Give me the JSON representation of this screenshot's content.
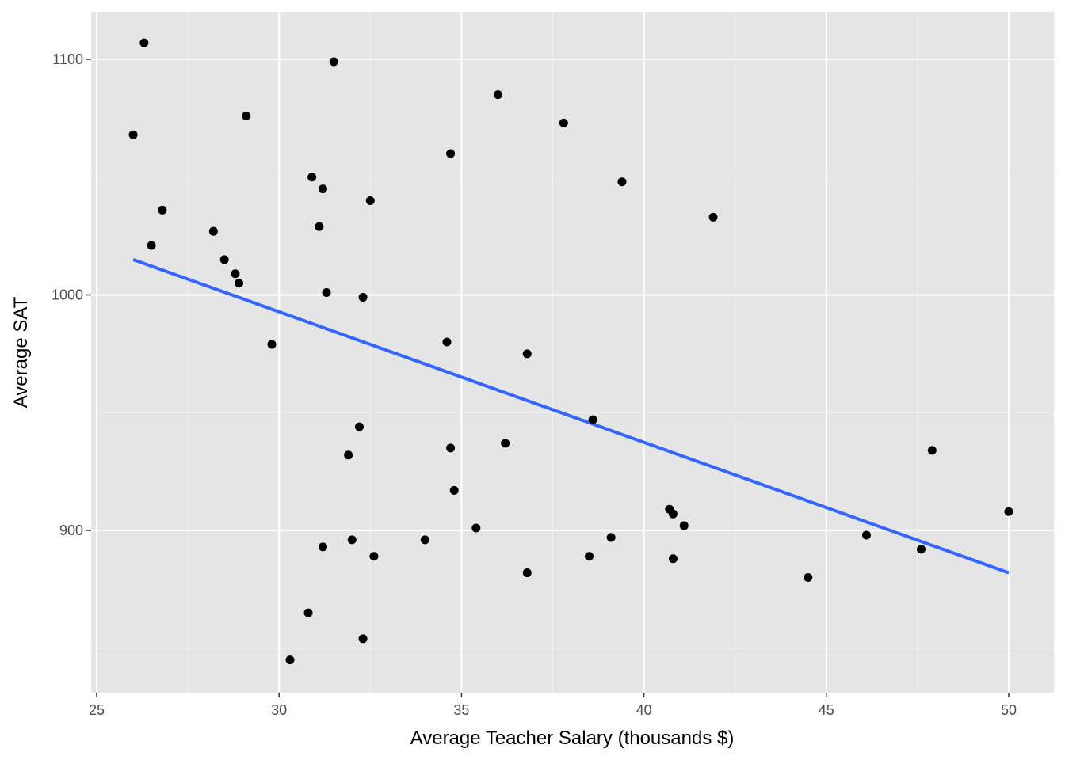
{
  "chart_data": {
    "type": "scatter",
    "title": "",
    "xlabel": "Average Teacher Salary (thousands $)",
    "ylabel": "Average SAT",
    "xlim": [
      24.9,
      51.2
    ],
    "ylim": [
      833,
      1120
    ],
    "x_ticks": [
      25,
      30,
      35,
      40,
      45,
      50
    ],
    "x_tick_labels": [
      "25",
      "30",
      "35",
      "40",
      "45",
      "50"
    ],
    "y_ticks": [
      900,
      1000,
      1100
    ],
    "y_tick_labels": [
      "900",
      "1000",
      "1100"
    ],
    "x_minor_gridlines": [
      27.5,
      32.5,
      37.5,
      42.5,
      47.5
    ],
    "y_minor_gridlines": [
      850,
      950,
      1050
    ],
    "grid": true,
    "background": "#e5e5e5",
    "point_color": "#000000",
    "series": [
      {
        "points": [
          {
            "x": 26.0,
            "y": 1068
          },
          {
            "x": 26.3,
            "y": 1107
          },
          {
            "x": 26.5,
            "y": 1021
          },
          {
            "x": 26.8,
            "y": 1036
          },
          {
            "x": 28.2,
            "y": 1027
          },
          {
            "x": 28.5,
            "y": 1015
          },
          {
            "x": 28.8,
            "y": 1009
          },
          {
            "x": 28.9,
            "y": 1005
          },
          {
            "x": 29.1,
            "y": 1076
          },
          {
            "x": 29.8,
            "y": 979
          },
          {
            "x": 30.3,
            "y": 845
          },
          {
            "x": 30.8,
            "y": 865
          },
          {
            "x": 30.9,
            "y": 1050
          },
          {
            "x": 31.1,
            "y": 1029
          },
          {
            "x": 31.2,
            "y": 1045
          },
          {
            "x": 31.2,
            "y": 893
          },
          {
            "x": 31.3,
            "y": 1001
          },
          {
            "x": 31.5,
            "y": 1099
          },
          {
            "x": 31.9,
            "y": 932
          },
          {
            "x": 32.0,
            "y": 896
          },
          {
            "x": 32.2,
            "y": 944
          },
          {
            "x": 32.3,
            "y": 999
          },
          {
            "x": 32.3,
            "y": 854
          },
          {
            "x": 32.5,
            "y": 1040
          },
          {
            "x": 32.6,
            "y": 889
          },
          {
            "x": 34.0,
            "y": 896
          },
          {
            "x": 34.6,
            "y": 980
          },
          {
            "x": 34.7,
            "y": 1060
          },
          {
            "x": 34.7,
            "y": 935
          },
          {
            "x": 34.8,
            "y": 917
          },
          {
            "x": 35.4,
            "y": 901
          },
          {
            "x": 36.0,
            "y": 1085
          },
          {
            "x": 36.2,
            "y": 937
          },
          {
            "x": 36.8,
            "y": 975
          },
          {
            "x": 36.8,
            "y": 882
          },
          {
            "x": 37.8,
            "y": 1073
          },
          {
            "x": 38.5,
            "y": 889
          },
          {
            "x": 38.6,
            "y": 947
          },
          {
            "x": 39.1,
            "y": 897
          },
          {
            "x": 39.4,
            "y": 1048
          },
          {
            "x": 40.7,
            "y": 909
          },
          {
            "x": 40.8,
            "y": 888
          },
          {
            "x": 40.8,
            "y": 907
          },
          {
            "x": 41.1,
            "y": 902
          },
          {
            "x": 41.9,
            "y": 1033
          },
          {
            "x": 44.5,
            "y": 880
          },
          {
            "x": 46.1,
            "y": 898
          },
          {
            "x": 47.6,
            "y": 892
          },
          {
            "x": 47.9,
            "y": 934
          },
          {
            "x": 50.0,
            "y": 908
          }
        ]
      }
    ],
    "trendline": {
      "color": "#3366ff",
      "x": [
        26.0,
        50.0
      ],
      "y": [
        1015,
        882
      ]
    }
  }
}
